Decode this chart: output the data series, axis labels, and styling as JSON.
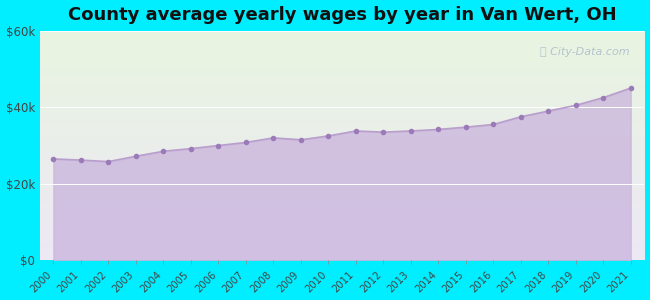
{
  "title": "County average yearly wages by year in Van Wert, OH",
  "years": [
    2000,
    2001,
    2002,
    2003,
    2004,
    2005,
    2006,
    2007,
    2008,
    2009,
    2010,
    2011,
    2012,
    2013,
    2014,
    2015,
    2016,
    2017,
    2018,
    2019,
    2020,
    2021
  ],
  "wages": [
    26500,
    26200,
    25800,
    27200,
    28500,
    29200,
    30000,
    30800,
    32000,
    31500,
    32500,
    33800,
    33500,
    33800,
    34200,
    34800,
    35500,
    37500,
    39000,
    40500,
    42500,
    45000
  ],
  "ylim": [
    0,
    60000
  ],
  "yticks": [
    0,
    20000,
    40000,
    60000
  ],
  "ytick_labels": [
    "$0",
    "$20k",
    "$40k",
    "$60k"
  ],
  "line_color": "#b89fcc",
  "fill_color": "#c9b3dc",
  "fill_alpha": 0.75,
  "marker_color": "#9b7ab8",
  "bg_outer": "#00eeff",
  "bg_plot_top": "#e8f5e0",
  "bg_plot_bottom": "#ede8f5",
  "watermark": "City-Data.com",
  "watermark_icon": "ⓘ",
  "title_fontsize": 13,
  "title_color": "#111111",
  "grid_color": "#e0dde8"
}
